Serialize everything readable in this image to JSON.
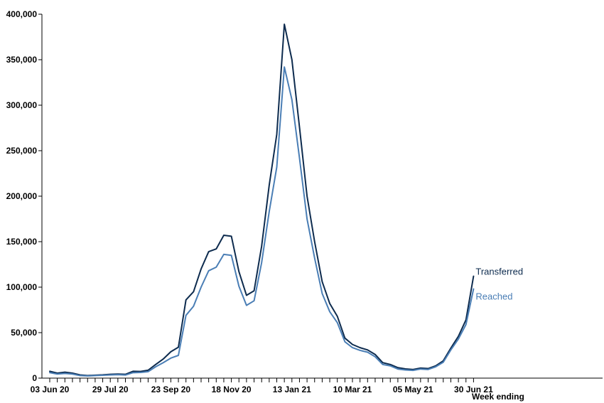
{
  "chart_data": {
    "type": "line",
    "xlabel": "Week ending",
    "ylabel": "",
    "ylim": [
      0,
      400000
    ],
    "yticks": [
      0,
      50000,
      100000,
      150000,
      200000,
      250000,
      300000,
      350000,
      400000
    ],
    "ytick_labels": [
      "0",
      "50,000",
      "100,000",
      "150,000",
      "200,000",
      "250,000",
      "300,000",
      "350,000",
      "400,000"
    ],
    "x_tick_labels": [
      {
        "index": 0,
        "label": "03 Jun 20"
      },
      {
        "index": 8,
        "label": "29 Jul 20"
      },
      {
        "index": 16,
        "label": "23 Sep 20"
      },
      {
        "index": 24,
        "label": "18 Nov 20"
      },
      {
        "index": 32,
        "label": "13 Jan 21"
      },
      {
        "index": 40,
        "label": "10 Mar 21"
      },
      {
        "index": 48,
        "label": "05 May 21"
      },
      {
        "index": 56,
        "label": "30 Jun 21"
      }
    ],
    "n_points": 57,
    "series": [
      {
        "name": "Transferred",
        "color": "#0d2b4e",
        "values": [
          7500,
          5500,
          6500,
          5500,
          3500,
          2800,
          3200,
          3600,
          4200,
          4500,
          4200,
          7500,
          7300,
          8700,
          15000,
          21000,
          29000,
          34000,
          86000,
          95000,
          120000,
          139000,
          142000,
          157000,
          156000,
          117000,
          91000,
          96000,
          145000,
          212000,
          268000,
          389000,
          350000,
          276000,
          200000,
          150000,
          106000,
          82000,
          68000,
          44000,
          37000,
          33500,
          31000,
          26000,
          17000,
          15000,
          11500,
          10200,
          9500,
          11000,
          10500,
          13500,
          19000,
          33000,
          46000,
          64000,
          112000
        ]
      },
      {
        "name": "Reached",
        "color": "#4a7eb5",
        "values": [
          6000,
          4500,
          5200,
          4500,
          2800,
          2400,
          2800,
          3100,
          3500,
          3800,
          3400,
          6000,
          6200,
          7100,
          12500,
          17000,
          22000,
          25000,
          69000,
          79000,
          100000,
          118000,
          122000,
          136000,
          135000,
          101000,
          80000,
          85000,
          127000,
          183000,
          232000,
          342000,
          306000,
          242000,
          175000,
          132000,
          93000,
          73000,
          61000,
          40000,
          33500,
          30500,
          28500,
          23500,
          15000,
          13500,
          10000,
          9000,
          8500,
          10000,
          9500,
          12500,
          17500,
          31000,
          43000,
          59000,
          98000
        ]
      }
    ]
  }
}
